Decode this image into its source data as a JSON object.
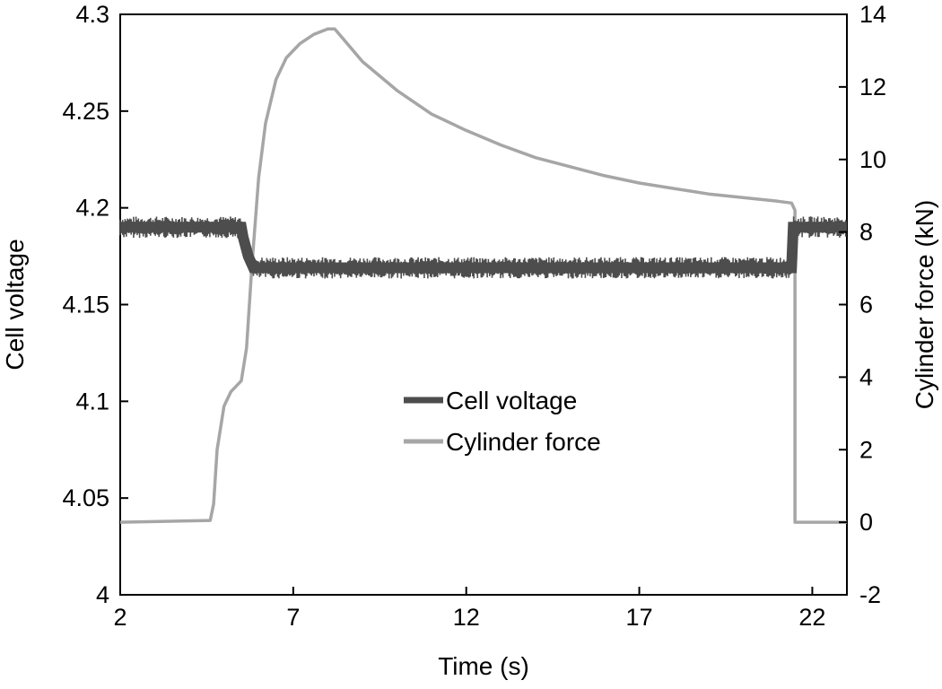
{
  "chart_data": {
    "type": "line",
    "title": "",
    "xlabel": "Time  (s)",
    "ylabel": "Cell voltage",
    "y2label": "Cylinder force (kN)",
    "xlim": [
      2,
      23
    ],
    "ylim": [
      4.0,
      4.3
    ],
    "y2lim": [
      -2,
      14
    ],
    "x_ticks": [
      "2",
      "7",
      "12",
      "17",
      "22"
    ],
    "y_ticks": [
      "4",
      "4.05",
      "4.1",
      "4.15",
      "4.2",
      "4.25",
      "4.3"
    ],
    "y2_ticks": [
      "-2",
      "0",
      "2",
      "4",
      "6",
      "8",
      "10",
      "12",
      "14"
    ],
    "grid": false,
    "legend_position": "center",
    "series": [
      {
        "name": "Cell voltage",
        "axis": "left",
        "color": "#4d4d4d",
        "x": [
          2.0,
          5.5,
          5.55,
          5.7,
          5.85,
          6.0,
          21.4,
          21.45,
          23.0
        ],
        "y": [
          4.19,
          4.19,
          4.185,
          4.175,
          4.169,
          4.169,
          4.169,
          4.19,
          4.19
        ]
      },
      {
        "name": "Cylinder force",
        "axis": "right",
        "color": "#a6a6a6",
        "x": [
          2.0,
          4.6,
          4.7,
          4.8,
          5.0,
          5.2,
          5.5,
          5.65,
          5.8,
          6.0,
          6.2,
          6.5,
          6.8,
          7.2,
          7.6,
          8.0,
          8.2,
          9.0,
          10.0,
          11.0,
          12.0,
          13.0,
          14.0,
          15.0,
          16.0,
          17.0,
          18.0,
          19.0,
          20.0,
          21.0,
          21.4,
          21.5,
          21.5,
          23.0
        ],
        "y": [
          0.0,
          0.05,
          0.5,
          2.0,
          3.2,
          3.6,
          3.9,
          4.8,
          7.0,
          9.5,
          11.0,
          12.2,
          12.8,
          13.2,
          13.45,
          13.6,
          13.6,
          12.7,
          11.9,
          11.25,
          10.8,
          10.4,
          10.05,
          9.8,
          9.55,
          9.35,
          9.2,
          9.05,
          8.95,
          8.85,
          8.8,
          8.6,
          0.0,
          0.0
        ]
      }
    ]
  }
}
